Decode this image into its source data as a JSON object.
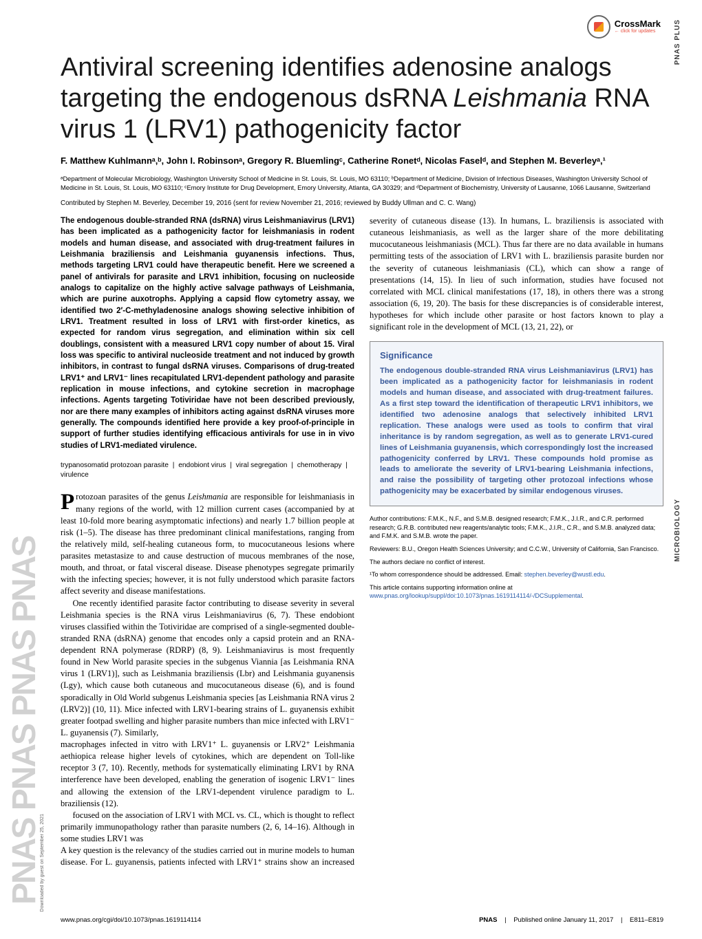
{
  "crossmark": {
    "title": "CrossMark",
    "sub": "← click for updates"
  },
  "labels": {
    "pnas_plus": "PNAS PLUS",
    "microbiology": "MICROBIOLOGY",
    "pnas_logo_repeat": "PNAS PNAS PNAS PNAS",
    "download": "Downloaded by guest on September 25, 2021"
  },
  "title_parts": {
    "a": "Antiviral screening identifies adenosine analogs targeting the endogenous dsRNA ",
    "b_ital": "Leishmania",
    "c": " RNA virus 1 (LRV1) pathogenicity factor"
  },
  "authors": "F. Matthew Kuhlmannᵃ,ᵇ, John I. Robinsonᵃ, Gregory R. Bluemlingᶜ, Catherine Ronetᵈ, Nicolas Faselᵈ, and Stephen M. Beverleyᵃ,¹",
  "affiliations": "ᵃDepartment of Molecular Microbiology, Washington University School of Medicine in St. Louis, St. Louis, MO 63110; ᵇDepartment of Medicine, Division of Infectious Diseases, Washington University School of Medicine in St. Louis, St. Louis, MO 63110; ᶜEmory Institute for Drug Development, Emory University, Atlanta, GA 30329; and ᵈDepartment of Biochemistry, University of Lausanne, 1066 Lausanne, Switzerland",
  "contributed": "Contributed by Stephen M. Beverley, December 19, 2016 (sent for review November 21, 2016; reviewed by Buddy Ullman and C. C. Wang)",
  "abstract": "The endogenous double-stranded RNA (dsRNA) virus Leishmaniavirus (LRV1) has been implicated as a pathogenicity factor for leishmaniasis in rodent models and human disease, and associated with drug-treatment failures in Leishmania braziliensis and Leishmania guyanensis infections. Thus, methods targeting LRV1 could have therapeutic benefit. Here we screened a panel of antivirals for parasite and LRV1 inhibition, focusing on nucleoside analogs to capitalize on the highly active salvage pathways of Leishmania, which are purine auxotrophs. Applying a capsid flow cytometry assay, we identified two 2′-C-methyladenosine analogs showing selective inhibition of LRV1. Treatment resulted in loss of LRV1 with first-order kinetics, as expected for random virus segregation, and elimination within six cell doublings, consistent with a measured LRV1 copy number of about 15. Viral loss was specific to antiviral nucleoside treatment and not induced by growth inhibitors, in contrast to fungal dsRNA viruses. Comparisons of drug-treated LRV1⁺ and LRV1⁻ lines recapitulated LRV1-dependent pathology and parasite replication in mouse infections, and cytokine secretion in macrophage infections. Agents targeting Totiviridae have not been described previously, nor are there many examples of inhibitors acting against dsRNA viruses more generally. The compounds identified here provide a key proof-of-principle in support of further studies identifying efficacious antivirals for use in in vivo studies of LRV1-mediated virulence.",
  "keywords": {
    "k1": "trypanosomatid protozoan parasite",
    "k2": "endobiont virus",
    "k3": "viral segregation",
    "k4": "chemotherapy",
    "k5": "virulence",
    "sep": "|"
  },
  "body": {
    "p1_first": "rotozoan parasites of the genus ",
    "p1_ital": "Leishmania",
    "p1_rest": " are responsible for leishmaniasis in many regions of the world, with 12 million current cases (accompanied by at least 10-fold more bearing asymptomatic infections) and nearly 1.7 billion people at risk (1–5). The disease has three predominant clinical manifestations, ranging from the relatively mild, self-healing cutaneous form, to mucocutaneous lesions where parasites metastasize to and cause destruction of mucous membranes of the nose, mouth, and throat, or fatal visceral disease. Disease phenotypes segregate primarily with the infecting species; however, it is not fully understood which parasite factors affect severity and disease manifestations.",
    "p2": "One recently identified parasite factor contributing to disease severity in several Leishmania species is the RNA virus Leishmaniavirus (6, 7). These endobiont viruses classified within the Totiviridae are comprised of a single-segmented double-stranded RNA (dsRNA) genome that encodes only a capsid protein and an RNA-dependent RNA polymerase (RDRP) (8, 9). Leishmaniavirus is most frequently found in New World parasite species in the subgenus Viannia [as Leishmania RNA virus 1 (LRV1)], such as Leishmania braziliensis (Lbr) and Leishmania guyanensis (Lgy), which cause both cutaneous and mucocutaneous disease (6), and is found sporadically in Old World subgenus Leishmania species [as Leishmania RNA virus 2 (LRV2)] (10, 11). Mice infected with LRV1-bearing strains of L. guyanensis exhibit greater footpad swelling and higher parasite numbers than mice infected with LRV1⁻ L. guyanensis (7). Similarly,"
  },
  "col2": {
    "p0": "macrophages infected in vitro with LRV1⁺ L. guyanensis or LRV2⁺ Leishmania aethiopica release higher levels of cytokines, which are dependent on Toll-like receptor 3 (7, 10). Recently, methods for systematically eliminating LRV1 by RNA interference have been developed, enabling the generation of isogenic LRV1⁻ lines and allowing the extension of the LRV1-dependent virulence paradigm to L. braziliensis (12).",
    "p1": "A key question is the relevancy of the studies carried out in murine models to human disease. For L. guyanensis, patients infected with LRV1⁺ strains show an increased severity of cutaneous disease (13). In humans, L. braziliensis is associated with cutaneous leishmaniasis, as well as the larger share of the more debilitating mucocutaneous leishmaniasis (MCL). Thus far there are no data available in humans permitting tests of the association of LRV1 with L. braziliensis parasite burden nor the severity of cutaneous leishmaniasis (CL), which can show a range of presentations (14, 15). In lieu of such information, studies have focused not correlated with MCL clinical manifestations (17, 18), in others there was a strong association (6, 19, 20). The basis for these discrepancies is of considerable interest, hypotheses for which include other parasite or host factors known to play a significant role in the development of MCL (13, 21, 22), or",
    "p1b": "focused on the association of LRV1 with MCL vs. CL, which is thought to reflect primarily immunopathology rather than parasite numbers (2, 6, 14–16). Although in some studies LRV1 was"
  },
  "significance": {
    "heading": "Significance",
    "text": "The endogenous double-stranded RNA virus Leishmaniavirus (LRV1) has been implicated as a pathogenicity factor for leishmaniasis in rodent models and human disease, and associated with drug-treatment failures. As a first step toward the identification of therapeutic LRV1 inhibitors, we identified two adenosine analogs that selectively inhibited LRV1 replication. These analogs were used as tools to confirm that viral inheritance is by random segregation, as well as to generate LRV1-cured lines of Leishmania guyanensis, which correspondingly lost the increased pathogenicity conferred by LRV1. These compounds hold promise as leads to ameliorate the severity of LRV1-bearing Leishmania infections, and raise the possibility of targeting other protozoal infections whose pathogenicity may be exacerbated by similar endogenous viruses."
  },
  "footnotes": {
    "contrib": "Author contributions: F.M.K., N.F., and S.M.B. designed research; F.M.K., J.I.R., and C.R. performed research; G.R.B. contributed new reagents/analytic tools; F.M.K., J.I.R., C.R., and S.M.B. analyzed data; and F.M.K. and S.M.B. wrote the paper.",
    "reviewers": "Reviewers: B.U., Oregon Health Sciences University; and C.C.W., University of California, San Francisco.",
    "coi": "The authors declare no conflict of interest.",
    "corr_label": "¹To whom correspondence should be addressed. Email: ",
    "corr_email": "stephen.beverley@wustl.edu",
    "supp_a": "This article contains supporting information online at ",
    "supp_link": "www.pnas.org/lookup/suppl/doi:10.1073/pnas.1619114114/-/DCSupplemental",
    "supp_b": "."
  },
  "footer": {
    "left": "www.pnas.org/cgi/doi/10.1073/pnas.1619114114",
    "pnas": "PNAS",
    "mid": "Published online January 11, 2017",
    "pages": "E811–E819"
  },
  "colors": {
    "significance_text": "#3a5a9a",
    "significance_bg": "#f2f5fa",
    "link": "#2a5caa"
  }
}
